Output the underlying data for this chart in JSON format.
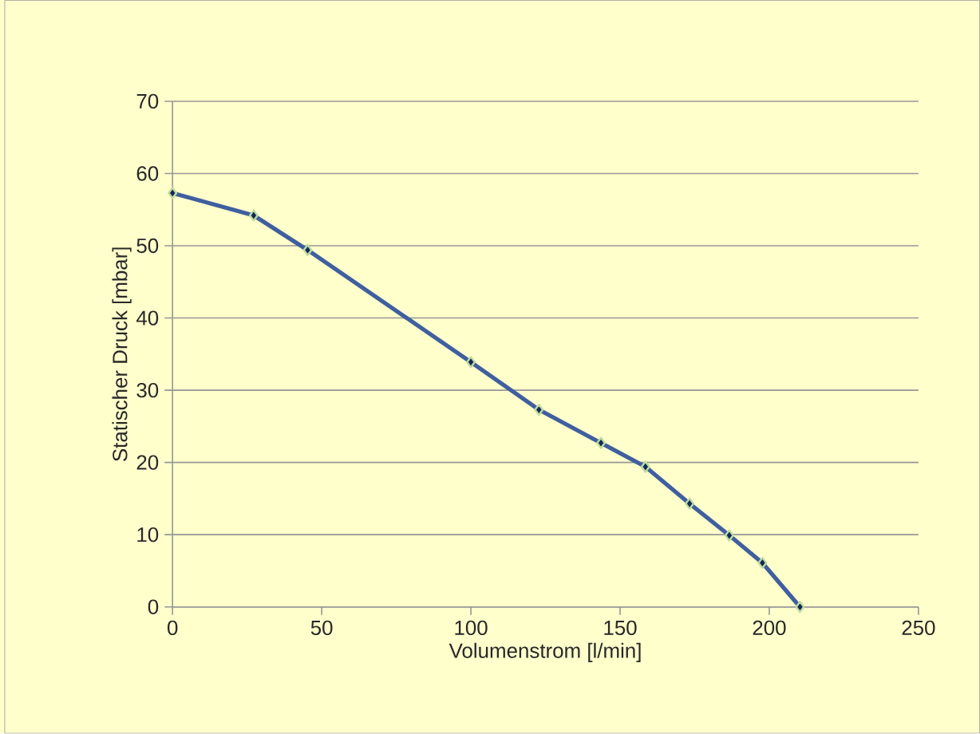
{
  "chart_data": {
    "type": "line",
    "xlabel": "Volumenstrom  [l/min]",
    "ylabel": "Statischer Druck [mbar]",
    "x": [
      0,
      27.2,
      45.3,
      100,
      122.8,
      143.6,
      158.5,
      173.3,
      186.6,
      197.7,
      210.3
    ],
    "values": [
      57.3,
      54.2,
      49.4,
      33.9,
      27.3,
      22.7,
      19.4,
      14.3,
      9.9,
      6.1,
      0
    ],
    "color": "#3f5f9f",
    "xlim": [
      0,
      250
    ],
    "ylim": [
      0,
      70
    ],
    "xticks": [
      0,
      50,
      100,
      150,
      200,
      250
    ],
    "yticks": [
      0,
      10,
      20,
      30,
      40,
      50,
      60,
      70
    ],
    "grid": "y",
    "marker": "diamond",
    "line_style": "solid"
  }
}
